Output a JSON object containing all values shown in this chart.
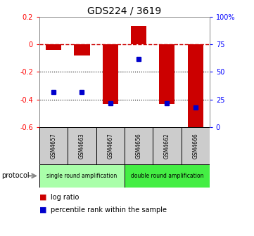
{
  "title": "GDS224 / 3619",
  "samples": [
    "GSM4657",
    "GSM4663",
    "GSM4667",
    "GSM4656",
    "GSM4662",
    "GSM4666"
  ],
  "log_ratio": [
    -0.04,
    -0.08,
    -0.43,
    0.13,
    -0.43,
    -0.6
  ],
  "percentile_rank": [
    32,
    32,
    22,
    62,
    22,
    18
  ],
  "ylim_left": [
    -0.6,
    0.2
  ],
  "ylim_right": [
    0,
    100
  ],
  "proto1_label": "single round amplification",
  "proto1_color": "#aaffaa",
  "proto2_label": "double round amplification",
  "proto2_color": "#44ee44",
  "proto1_range": [
    0,
    3
  ],
  "proto2_range": [
    3,
    6
  ],
  "bar_color": "#cc0000",
  "dot_color": "#0000cc",
  "dashed_line_color": "#cc0000",
  "dotted_line_color": "#000000",
  "sample_cell_color": "#cccccc",
  "title_fontsize": 10,
  "tick_fontsize": 7,
  "protocol_label": "protocol",
  "legend1": "log ratio",
  "legend2": "percentile rank within the sample"
}
